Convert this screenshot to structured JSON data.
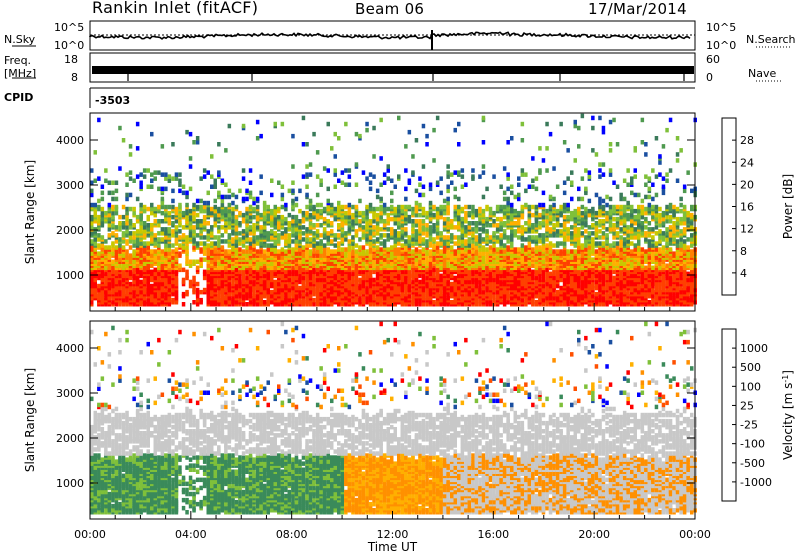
{
  "header": {
    "title": "Rankin Inlet (fitACF)",
    "beam": "Beam 06",
    "date": "17/Mar/2014"
  },
  "strips": {
    "nsky_label": "N.Sky",
    "nsearch_label": "N.Search",
    "noise_ticks": [
      "10^5",
      "10^0"
    ],
    "freq_label_1": "Freq.",
    "freq_label_2": "[MHz]",
    "freq_ticks": [
      "18",
      "8"
    ],
    "nave_label": "Nave",
    "nave_ticks": [
      "60",
      "0"
    ],
    "cpid_label": "CPID",
    "cpid_value": "-3503"
  },
  "colors": {
    "power": [
      "#0000ff",
      "#1a4fa0",
      "#3a7a5a",
      "#4f9a4f",
      "#7fc03a",
      "#c8c800",
      "#ffb000",
      "#ff8000",
      "#ff4000",
      "#ff0000"
    ],
    "velocity": [
      "#ff0000",
      "#ff5000",
      "#ff9000",
      "#ffb000",
      "#c8c8c8",
      "#c8c8c8",
      "#7fc03a",
      "#3a8a5a",
      "#1a4fa0",
      "#0000ff"
    ]
  },
  "chart_data": [
    {
      "type": "heatmap",
      "name": "power-panel",
      "ylabel": "Slant Range [km]",
      "xlabel": "",
      "x_ticks": [
        "00:00",
        "04:00",
        "08:00",
        "12:00",
        "16:00",
        "20:00",
        "00:00"
      ],
      "y_ticks": [
        1000,
        2000,
        3000,
        4000
      ],
      "ylim": [
        200,
        4600
      ],
      "xlim_hours": [
        0,
        24
      ],
      "colorbar": {
        "label": "Power [dB]",
        "ticks": [
          "28",
          "24",
          "20",
          "16",
          "12",
          "8",
          "4"
        ],
        "range": [
          0,
          30
        ]
      }
    },
    {
      "type": "heatmap",
      "name": "velocity-panel",
      "ylabel": "Slant Range [km]",
      "xlabel": "Time UT",
      "x_ticks": [
        "00:00",
        "04:00",
        "08:00",
        "12:00",
        "16:00",
        "20:00",
        "00:00"
      ],
      "y_ticks": [
        1000,
        2000,
        3000,
        4000
      ],
      "ylim": [
        200,
        4600
      ],
      "xlim_hours": [
        0,
        24
      ],
      "colorbar": {
        "label": "Velocity [m s",
        "label_sup": "-1",
        "label_end": "]",
        "ticks": [
          "1000",
          "500",
          "100",
          "25",
          "-25",
          "-100",
          "-500",
          "-1000"
        ]
      }
    }
  ]
}
